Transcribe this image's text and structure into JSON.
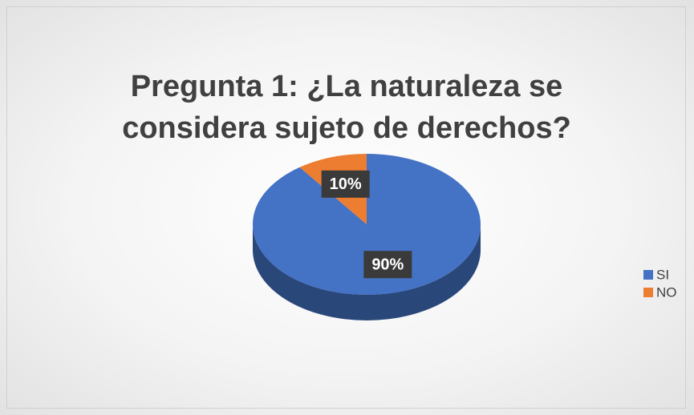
{
  "chart_data": {
    "type": "pie",
    "title": "Pregunta 1: ¿La naturaleza se considera sujeto de derechos?",
    "categories": [
      "SI",
      "NO"
    ],
    "values": [
      90,
      10
    ],
    "value_labels": [
      "90%",
      "10%"
    ],
    "colors": [
      "#4472c4",
      "#ed7d31"
    ],
    "legend": "right",
    "three_d": true
  }
}
